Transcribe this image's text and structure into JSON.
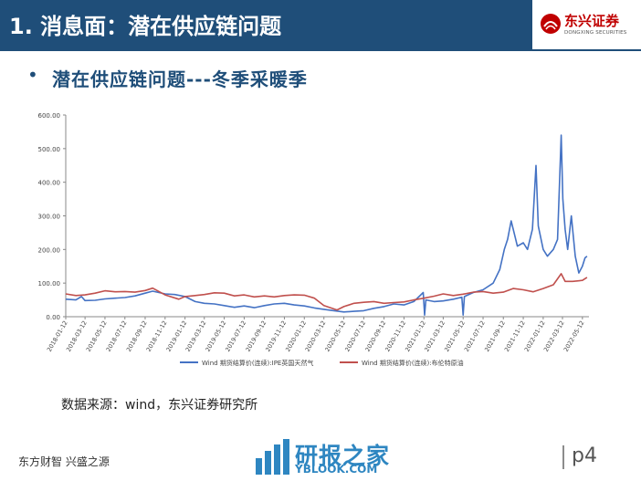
{
  "header": {
    "title": "1. 消息面：潜在供应链问题"
  },
  "logo": {
    "name": "东兴证券",
    "subtitle": "DONGXING SECURITIES"
  },
  "bullet": {
    "text": "潜在供应链问题---冬季采暖季"
  },
  "source": "数据来源：wind，东兴证券研究所",
  "footer": {
    "slogan": "东方财智 兴盛之源",
    "page": "p4"
  },
  "watermark": {
    "cn": "研报之家",
    "en": "YBLOOK.COM"
  },
  "colors": {
    "header": "#1f4e79",
    "gas": "#4472c4",
    "oil": "#c0504d",
    "brand_red": "#c00000",
    "watermark": "#2e86c1"
  },
  "chart_data": {
    "type": "line",
    "ylim": [
      0,
      600
    ],
    "yticks": [
      "0.00",
      "100.00",
      "200.00",
      "300.00",
      "400.00",
      "500.00",
      "600.00"
    ],
    "xticks": [
      "2018-01-12",
      "2018-03-12",
      "2018-05-12",
      "2018-07-12",
      "2018-09-12",
      "2018-11-12",
      "2019-01-12",
      "2019-03-12",
      "2019-05-12",
      "2019-07-12",
      "2019-09-12",
      "2019-11-12",
      "2020-01-12",
      "2020-03-12",
      "2020-05-12",
      "2020-07-12",
      "2020-09-12",
      "2020-11-12",
      "2021-01-12",
      "2021-03-12",
      "2021-05-12",
      "2021-07-12",
      "2021-09-12",
      "2021-11-12",
      "2022-01-12",
      "2022-03-12",
      "2022-05-12"
    ],
    "grid": false,
    "legend_position": "bottom",
    "series": [
      {
        "name": "Wind 期货结算价(连续):IPE英国天然气",
        "color": "#4472c4",
        "points": [
          [
            "2018-01-12",
            52
          ],
          [
            "2018-02-12",
            50
          ],
          [
            "2018-03-01",
            60
          ],
          [
            "2018-03-12",
            48
          ],
          [
            "2018-04-12",
            49
          ],
          [
            "2018-05-12",
            53
          ],
          [
            "2018-06-12",
            55
          ],
          [
            "2018-07-12",
            57
          ],
          [
            "2018-08-12",
            62
          ],
          [
            "2018-09-12",
            70
          ],
          [
            "2018-10-05",
            76
          ],
          [
            "2018-11-12",
            68
          ],
          [
            "2018-12-12",
            66
          ],
          [
            "2019-01-12",
            60
          ],
          [
            "2019-02-12",
            45
          ],
          [
            "2019-03-12",
            40
          ],
          [
            "2019-04-12",
            38
          ],
          [
            "2019-05-12",
            33
          ],
          [
            "2019-06-12",
            28
          ],
          [
            "2019-07-12",
            32
          ],
          [
            "2019-08-12",
            27
          ],
          [
            "2019-09-12",
            33
          ],
          [
            "2019-10-12",
            38
          ],
          [
            "2019-11-12",
            40
          ],
          [
            "2019-12-12",
            35
          ],
          [
            "2020-01-12",
            32
          ],
          [
            "2020-02-12",
            26
          ],
          [
            "2020-03-12",
            22
          ],
          [
            "2020-04-12",
            18
          ],
          [
            "2020-05-12",
            14
          ],
          [
            "2020-06-12",
            16
          ],
          [
            "2020-07-12",
            18
          ],
          [
            "2020-08-12",
            25
          ],
          [
            "2020-09-12",
            30
          ],
          [
            "2020-10-12",
            38
          ],
          [
            "2020-11-12",
            35
          ],
          [
            "2020-12-12",
            45
          ],
          [
            "2021-01-10",
            72
          ],
          [
            "2021-01-14",
            5
          ],
          [
            "2021-01-18",
            50
          ],
          [
            "2021-02-12",
            45
          ],
          [
            "2021-03-12",
            47
          ],
          [
            "2021-04-12",
            52
          ],
          [
            "2021-05-08",
            58
          ],
          [
            "2021-05-12",
            5
          ],
          [
            "2021-05-16",
            60
          ],
          [
            "2021-06-12",
            72
          ],
          [
            "2021-07-12",
            80
          ],
          [
            "2021-08-12",
            100
          ],
          [
            "2021-09-01",
            140
          ],
          [
            "2021-09-15",
            200
          ],
          [
            "2021-09-25",
            230
          ],
          [
            "2021-10-06",
            285
          ],
          [
            "2021-10-15",
            250
          ],
          [
            "2021-10-25",
            210
          ],
          [
            "2021-11-12",
            220
          ],
          [
            "2021-11-25",
            200
          ],
          [
            "2021-12-10",
            260
          ],
          [
            "2021-12-21",
            450
          ],
          [
            "2021-12-28",
            270
          ],
          [
            "2022-01-12",
            200
          ],
          [
            "2022-01-25",
            180
          ],
          [
            "2022-02-12",
            200
          ],
          [
            "2022-02-25",
            230
          ],
          [
            "2022-03-08",
            540
          ],
          [
            "2022-03-13",
            350
          ],
          [
            "2022-03-20",
            260
          ],
          [
            "2022-03-28",
            200
          ],
          [
            "2022-04-08",
            300
          ],
          [
            "2022-04-20",
            180
          ],
          [
            "2022-05-01",
            130
          ],
          [
            "2022-05-12",
            150
          ],
          [
            "2022-05-20",
            175
          ],
          [
            "2022-05-26",
            180
          ]
        ]
      },
      {
        "name": "Wind 期货结算价(连续):布伦特原油",
        "color": "#c0504d",
        "points": [
          [
            "2018-01-12",
            68
          ],
          [
            "2018-02-12",
            63
          ],
          [
            "2018-03-12",
            65
          ],
          [
            "2018-04-12",
            70
          ],
          [
            "2018-05-12",
            77
          ],
          [
            "2018-06-12",
            74
          ],
          [
            "2018-07-12",
            75
          ],
          [
            "2018-08-12",
            73
          ],
          [
            "2018-09-12",
            78
          ],
          [
            "2018-10-05",
            85
          ],
          [
            "2018-11-12",
            65
          ],
          [
            "2018-12-24",
            52
          ],
          [
            "2019-01-12",
            60
          ],
          [
            "2019-02-12",
            63
          ],
          [
            "2019-03-12",
            66
          ],
          [
            "2019-04-12",
            71
          ],
          [
            "2019-05-12",
            70
          ],
          [
            "2019-06-12",
            62
          ],
          [
            "2019-07-12",
            65
          ],
          [
            "2019-08-12",
            59
          ],
          [
            "2019-09-12",
            62
          ],
          [
            "2019-10-12",
            59
          ],
          [
            "2019-11-12",
            63
          ],
          [
            "2019-12-12",
            65
          ],
          [
            "2020-01-12",
            64
          ],
          [
            "2020-02-12",
            55
          ],
          [
            "2020-03-12",
            33
          ],
          [
            "2020-04-21",
            20
          ],
          [
            "2020-05-12",
            30
          ],
          [
            "2020-06-12",
            40
          ],
          [
            "2020-07-12",
            43
          ],
          [
            "2020-08-12",
            45
          ],
          [
            "2020-09-12",
            40
          ],
          [
            "2020-10-12",
            42
          ],
          [
            "2020-11-12",
            44
          ],
          [
            "2020-12-12",
            50
          ],
          [
            "2021-01-12",
            55
          ],
          [
            "2021-02-12",
            61
          ],
          [
            "2021-03-12",
            68
          ],
          [
            "2021-04-12",
            63
          ],
          [
            "2021-05-12",
            67
          ],
          [
            "2021-06-12",
            73
          ],
          [
            "2021-07-12",
            75
          ],
          [
            "2021-08-12",
            70
          ],
          [
            "2021-09-12",
            73
          ],
          [
            "2021-10-12",
            84
          ],
          [
            "2021-11-12",
            80
          ],
          [
            "2021-12-12",
            74
          ],
          [
            "2022-01-12",
            84
          ],
          [
            "2022-02-12",
            95
          ],
          [
            "2022-03-08",
            128
          ],
          [
            "2022-03-20",
            105
          ],
          [
            "2022-04-12",
            105
          ],
          [
            "2022-05-12",
            108
          ],
          [
            "2022-05-26",
            117
          ]
        ]
      }
    ]
  }
}
